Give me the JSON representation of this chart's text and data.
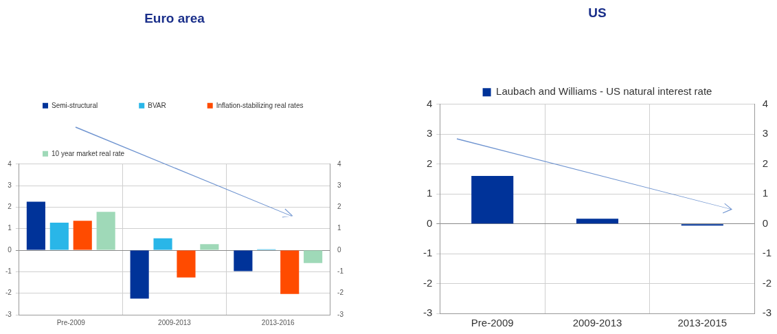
{
  "chart_data": [
    {
      "type": "bar",
      "title": "Euro area",
      "categories": [
        "Pre-2009",
        "2009-2013",
        "2013-2016"
      ],
      "series": [
        {
          "name": "Semi-structural",
          "color": "#003399",
          "values": [
            2.25,
            -2.25,
            -0.97
          ]
        },
        {
          "name": "BVAR",
          "color": "#29b6e8",
          "values": [
            1.28,
            0.55,
            0.04
          ]
        },
        {
          "name": "Inflation-stabilizing real rates",
          "color": "#ff4b00",
          "values": [
            1.37,
            -1.27,
            -2.03
          ]
        },
        {
          "name": "10 year market real rate",
          "color": "#9fd9b8",
          "values": [
            1.78,
            0.28,
            -0.6
          ]
        }
      ],
      "ylim": [
        -3,
        4
      ],
      "yticks": [
        -3,
        -2,
        -1,
        0,
        1,
        2,
        3,
        4
      ],
      "y2lim": [
        -3,
        4
      ],
      "y2ticks": [
        -3,
        -2,
        -1,
        0,
        1,
        2,
        3,
        4
      ],
      "grid": true,
      "legend": "top"
    },
    {
      "type": "bar",
      "title": "US",
      "categories": [
        "Pre-2009",
        "2009-2013",
        "2013-2015"
      ],
      "series": [
        {
          "name": "Laubach and Williams - US natural interest rate",
          "color": "#003399",
          "values": [
            1.6,
            0.17,
            -0.06
          ]
        }
      ],
      "ylim": [
        -3,
        4
      ],
      "yticks": [
        -3,
        -2,
        -1,
        0,
        1,
        2,
        3,
        4
      ],
      "y2lim": [
        -3,
        4
      ],
      "y2ticks": [
        -3,
        -2,
        -1,
        0,
        1,
        2,
        3,
        4
      ],
      "grid": true,
      "legend": "top"
    }
  ]
}
